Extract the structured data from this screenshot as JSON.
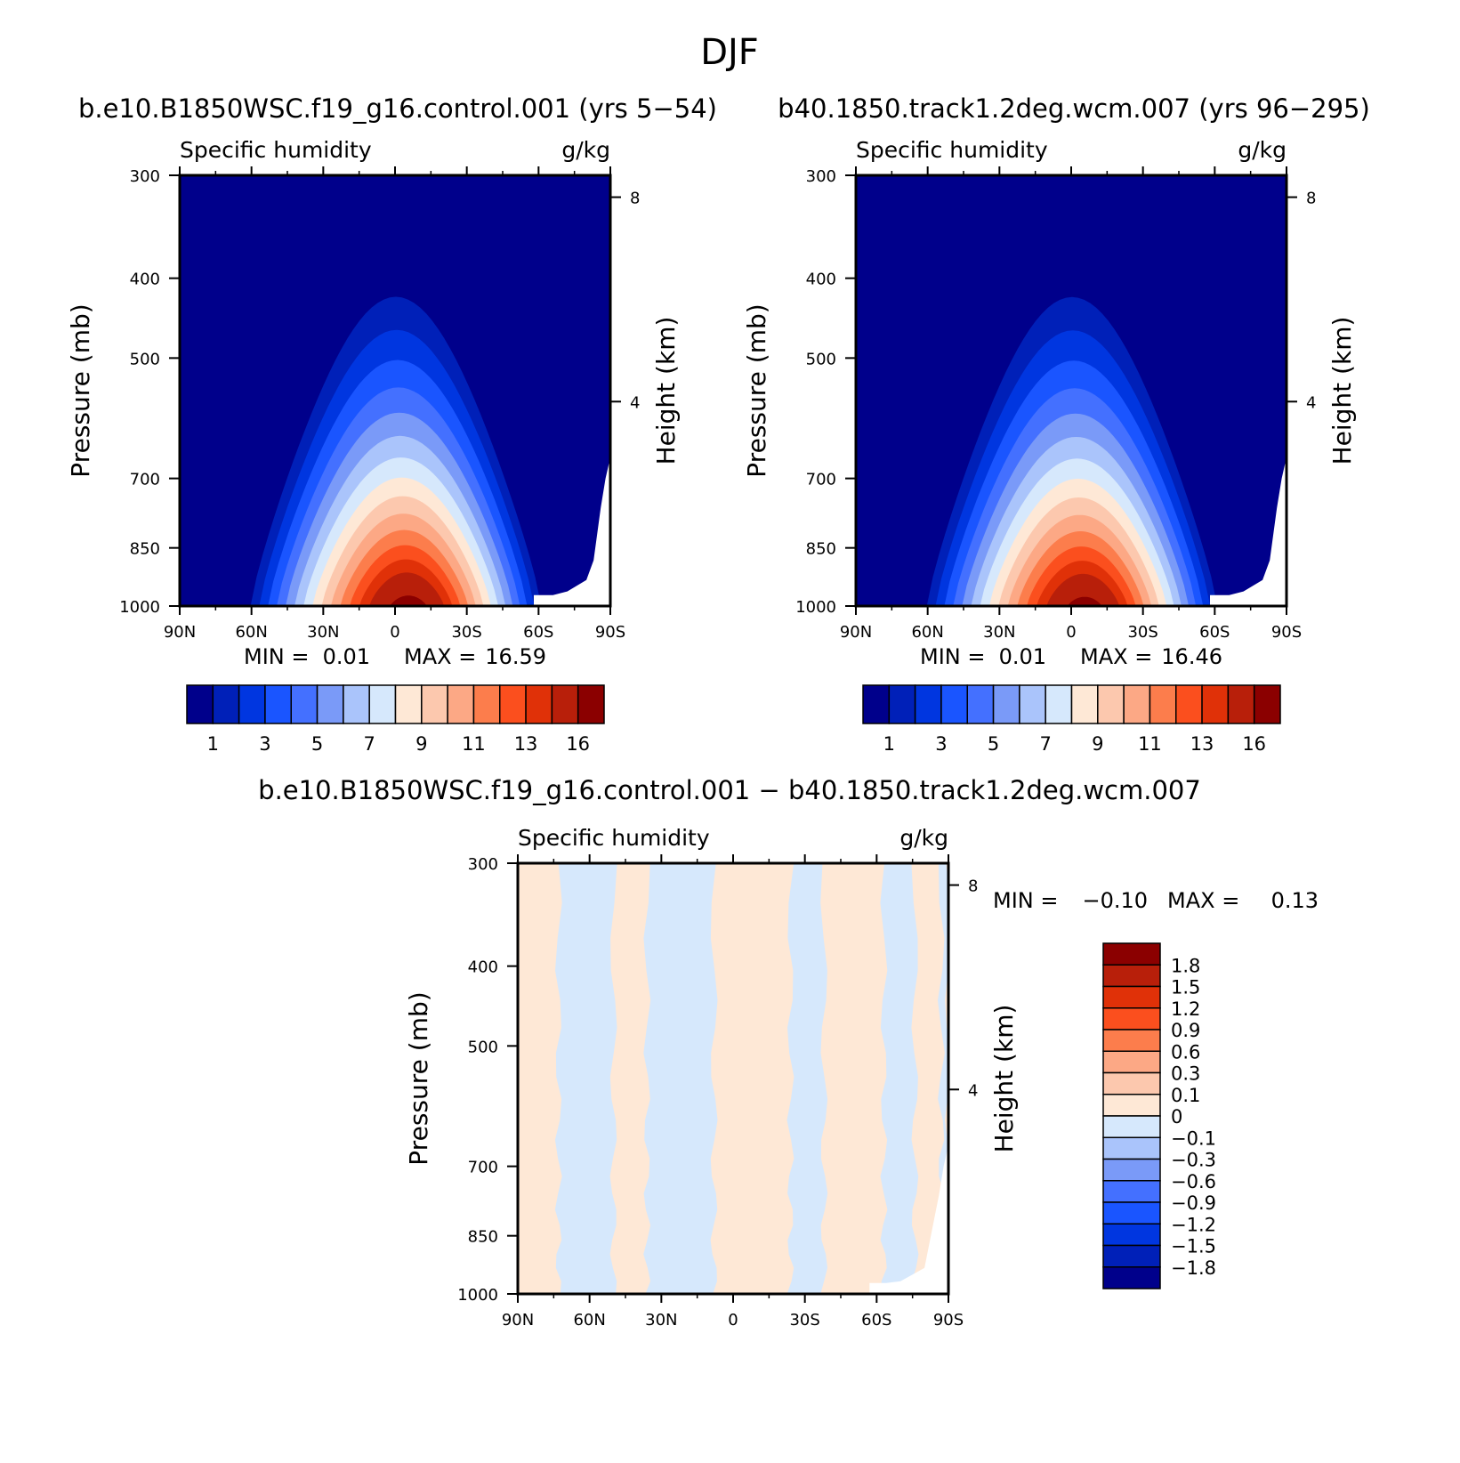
{
  "figure_title": "DJF",
  "diff_title": "b.e10.B1850WSC.f19_g16.control.001 − b40.1850.track1.2deg.wcm.007",
  "min_label": "MIN =",
  "max_label": "MAX =",
  "chart_data": [
    {
      "type": "heatmap",
      "title": "b.e10.B1850WSC.f19_g16.control.001 (yrs 5−54)",
      "variable": "Specific humidity",
      "units": "g/kg",
      "ylabel": "Pressure (mb)",
      "ylabel_right": "Height (km)",
      "x_ticks": [
        "90N",
        "60N",
        "30N",
        "0",
        "30S",
        "60S",
        "90S"
      ],
      "x_values": [
        90,
        60,
        30,
        0,
        -30,
        -60,
        -90
      ],
      "y_ticks": [
        300,
        400,
        500,
        700,
        850,
        1000
      ],
      "y_ticks_right": [
        8,
        4
      ],
      "ylim": [
        1000,
        300
      ],
      "min": "0.01",
      "max": "16.59",
      "peak_latitude": -6,
      "contour_levels": [
        1,
        2,
        3,
        4,
        5,
        6,
        7,
        8,
        9,
        10,
        11,
        12,
        13,
        14,
        16
      ],
      "colorbar_labels": [
        "1",
        "3",
        "5",
        "7",
        "9",
        "11",
        "13",
        "16"
      ],
      "colors": [
        "#00008b",
        "#0020b8",
        "#0036e0",
        "#1a55ff",
        "#4470ff",
        "#7a9af8",
        "#aac4fb",
        "#d6e8fc",
        "#fee8d6",
        "#fcc8ae",
        "#fca885",
        "#fc7d4c",
        "#fb4f1e",
        "#e03108",
        "#b81f0a",
        "#8b0000"
      ]
    },
    {
      "type": "heatmap",
      "title": "b40.1850.track1.2deg.wcm.007 (yrs 96−295)",
      "variable": "Specific humidity",
      "units": "g/kg",
      "ylabel": "Pressure (mb)",
      "ylabel_right": "Height (km)",
      "x_ticks": [
        "90N",
        "60N",
        "30N",
        "0",
        "30S",
        "60S",
        "90S"
      ],
      "x_values": [
        90,
        60,
        30,
        0,
        -30,
        -60,
        -90
      ],
      "y_ticks": [
        300,
        400,
        500,
        700,
        850,
        1000
      ],
      "y_ticks_right": [
        8,
        4
      ],
      "ylim": [
        1000,
        300
      ],
      "min": "0.01",
      "max": "16.46",
      "peak_latitude": -6,
      "contour_levels": [
        1,
        2,
        3,
        4,
        5,
        6,
        7,
        8,
        9,
        10,
        11,
        12,
        13,
        14,
        16
      ],
      "colorbar_labels": [
        "1",
        "3",
        "5",
        "7",
        "9",
        "11",
        "13",
        "16"
      ],
      "colors": [
        "#00008b",
        "#0020b8",
        "#0036e0",
        "#1a55ff",
        "#4470ff",
        "#7a9af8",
        "#aac4fb",
        "#d6e8fc",
        "#fee8d6",
        "#fcc8ae",
        "#fca885",
        "#fc7d4c",
        "#fb4f1e",
        "#e03108",
        "#b81f0a",
        "#8b0000"
      ]
    },
    {
      "type": "heatmap",
      "title": "b.e10.B1850WSC.f19_g16.control.001 − b40.1850.track1.2deg.wcm.007",
      "variable": "Specific humidity",
      "units": "g/kg",
      "ylabel": "Pressure (mb)",
      "ylabel_right": "Height (km)",
      "x_ticks": [
        "90N",
        "60N",
        "30N",
        "0",
        "30S",
        "60S",
        "90S"
      ],
      "x_values": [
        90,
        60,
        30,
        0,
        -30,
        -60,
        -90
      ],
      "y_ticks": [
        300,
        400,
        500,
        700,
        850,
        1000
      ],
      "y_ticks_right": [
        8,
        4
      ],
      "ylim": [
        1000,
        300
      ],
      "min": "−0.10",
      "max": "0.13",
      "colorbar_labels": [
        "1.8",
        "1.5",
        "1.2",
        "0.9",
        "0.6",
        "0.3",
        "0.1",
        "0",
        "−0.1",
        "−0.3",
        "−0.6",
        "−0.9",
        "−1.2",
        "−1.5",
        "−1.8"
      ],
      "colors": [
        "#8b0000",
        "#b81f0a",
        "#e03108",
        "#fb4f1e",
        "#fc7d4c",
        "#fca885",
        "#fcc8ae",
        "#fee8d6",
        "#d6e8fc",
        "#aac4fb",
        "#7a9af8",
        "#4470ff",
        "#1a55ff",
        "#0036e0",
        "#0020b8",
        "#00008b"
      ],
      "negative_bands_lat": [
        [
          73,
          50
        ],
        [
          36,
          8
        ],
        [
          -24,
          -38
        ],
        [
          -63,
          -76
        ],
        [
          -87,
          -90
        ]
      ]
    }
  ]
}
